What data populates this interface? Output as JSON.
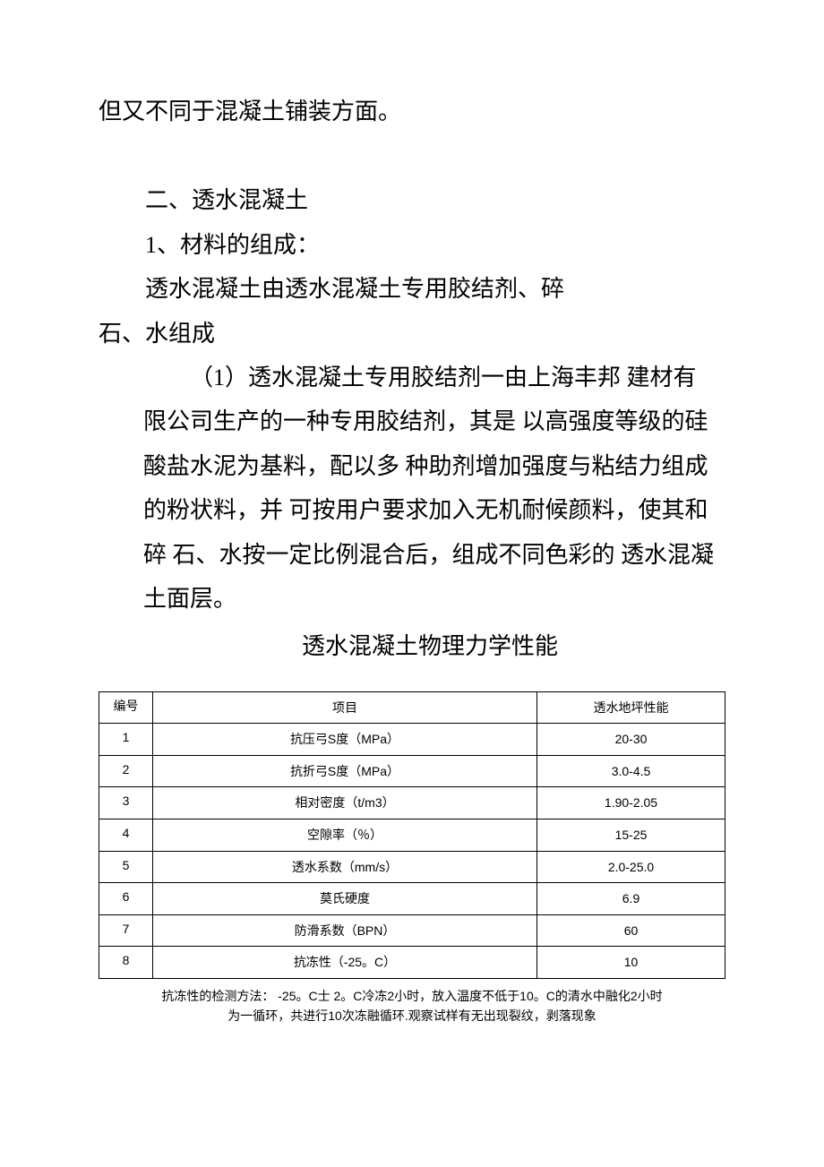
{
  "text": {
    "para1": "但又不同于混凝土铺装方面。",
    "heading2": "二、透水混凝土",
    "sub1": "1、材料的组成：",
    "sub1_body_a": "透水混凝土由透水混凝土专用胶结剂、碎",
    "sub1_body_b": "石、水组成",
    "item1": "（1）透水混凝土专用胶结剂一由上海丰邦 建材有限公司生产的一种专用胶结剂，其是 以高强度等级的硅酸盐水泥为基料，配以多 种助剂增加强度与粘结力组成的粉状料，并 可按用户要求加入无机耐候颜料，使其和碎 石、水按一定比例混合后，组成不同色彩的 透水混凝土面层。",
    "table_title": "透水混凝土物理力学性能"
  },
  "table": {
    "columns": [
      "编号",
      "项目",
      "透水地坪性能"
    ],
    "rows": [
      {
        "num": "1",
        "item": "抗压弓S度（MPa）",
        "val": "20-30"
      },
      {
        "num": "2",
        "item": "抗折弓S度（MPa）",
        "val": "3.0-4.5"
      },
      {
        "num": "3",
        "item": "相对密度（t/m3）",
        "val": "1.90-2.05"
      },
      {
        "num": "4",
        "item": "空隙率（％）",
        "val": "15-25"
      },
      {
        "num": "5",
        "item": "透水系数（mm/s）",
        "val": "2.0-25.0"
      },
      {
        "num": "6",
        "item": "莫氏硬度",
        "val": "6.9"
      },
      {
        "num": "7",
        "item": "防滑系数（BPN）",
        "val": "60"
      },
      {
        "num": "8",
        "item": "抗冻性（-25。C）",
        "val": "10"
      }
    ],
    "cell_fontsize": 14,
    "border_color": "#000000",
    "background_color": "#ffffff"
  },
  "footnote": {
    "line1": "抗冻性的检测方法： -25。C士 2。C冷冻2小时，放入温度不低于10。C的清水中融化2小时",
    "line2": "为一循环，共进行10次冻融循环.观察试样有无出现裂纹，剥落现象"
  }
}
